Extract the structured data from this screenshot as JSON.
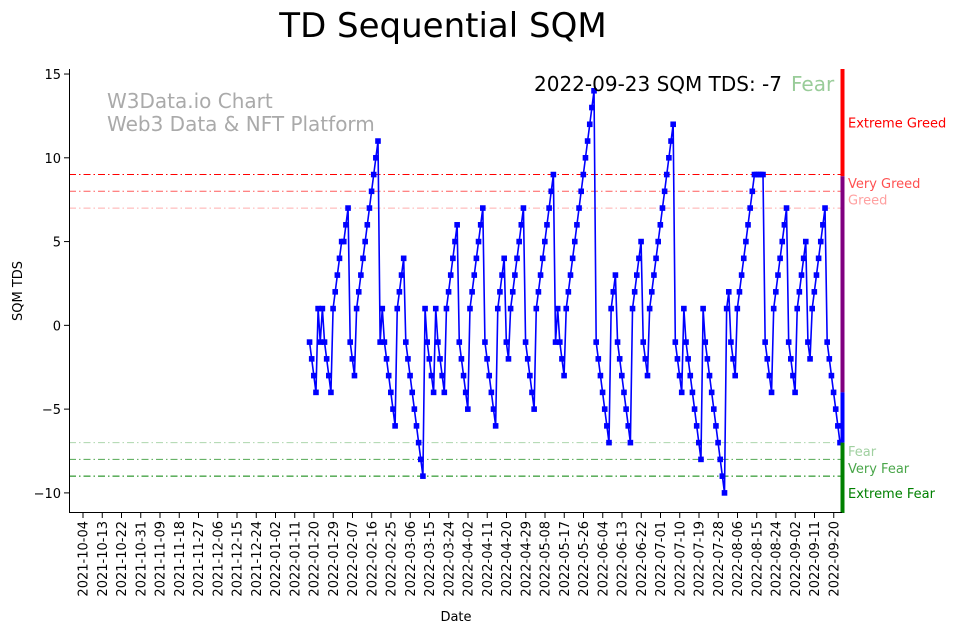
{
  "chart_data": {
    "type": "line",
    "title": "TD Sequential SQM",
    "xlabel": "Date",
    "ylabel": "SQM TDS",
    "ylim": [
      -11.2,
      15.3
    ],
    "yticks": [
      -10,
      -5,
      0,
      5,
      10,
      15
    ],
    "ytick_labels": [
      "−10",
      "−5",
      "0",
      "5",
      "10",
      "15"
    ],
    "x_tick_labels": [
      "2021-10-04",
      "2021-10-13",
      "2021-10-22",
      "2021-10-31",
      "2021-11-09",
      "2021-11-18",
      "2021-11-27",
      "2021-12-06",
      "2021-12-15",
      "2021-12-24",
      "2022-01-02",
      "2022-01-11",
      "2022-01-20",
      "2022-01-29",
      "2022-02-07",
      "2022-02-16",
      "2022-02-25",
      "2022-03-06",
      "2022-03-15",
      "2022-03-24",
      "2022-04-02",
      "2022-04-11",
      "2022-04-20",
      "2022-04-29",
      "2022-05-08",
      "2022-05-17",
      "2022-05-26",
      "2022-06-04",
      "2022-06-13",
      "2022-06-22",
      "2022-07-01",
      "2022-07-10",
      "2022-07-19",
      "2022-07-28",
      "2022-08-06",
      "2022-08-15",
      "2022-08-24",
      "2022-09-02",
      "2022-09-11",
      "2022-09-20"
    ],
    "x_start": "2021-09-30",
    "series": [
      {
        "name": "SQM TDS",
        "color": "#0000ff",
        "values": [
          -1,
          -2,
          -3,
          -4,
          1,
          -1,
          1,
          -1,
          -2,
          -3,
          -4,
          1,
          2,
          3,
          4,
          5,
          5,
          6,
          7,
          -1,
          -2,
          -3,
          1,
          2,
          3,
          4,
          5,
          6,
          7,
          8,
          9,
          10,
          11,
          -1,
          1,
          -1,
          -2,
          -3,
          -4,
          -5,
          -6,
          1,
          2,
          3,
          4,
          -1,
          -2,
          -3,
          -4,
          -5,
          -6,
          -7,
          -8,
          -9,
          1,
          -1,
          -2,
          -3,
          -4,
          1,
          -1,
          -2,
          -3,
          -4,
          1,
          2,
          3,
          4,
          5,
          6,
          -1,
          -2,
          -3,
          -4,
          -5,
          1,
          2,
          3,
          4,
          5,
          6,
          7,
          -1,
          -2,
          -3,
          -4,
          -5,
          -6,
          1,
          2,
          3,
          4,
          -1,
          -2,
          1,
          2,
          3,
          4,
          5,
          6,
          7,
          -1,
          -2,
          -3,
          -4,
          -5,
          1,
          2,
          3,
          4,
          5,
          6,
          7,
          8,
          9,
          -1,
          1,
          -1,
          -2,
          -3,
          1,
          2,
          3,
          4,
          5,
          6,
          7,
          8,
          9,
          10,
          11,
          12,
          13,
          14,
          -1,
          -2,
          -3,
          -4,
          -5,
          -6,
          -7,
          1,
          2,
          3,
          -1,
          -2,
          -3,
          -4,
          -5,
          -6,
          -7,
          1,
          2,
          3,
          4,
          5,
          -1,
          -2,
          -3,
          1,
          2,
          3,
          4,
          5,
          6,
          7,
          8,
          9,
          10,
          11,
          12,
          -1,
          -2,
          -3,
          -4,
          1,
          -1,
          -2,
          -3,
          -4,
          -5,
          -6,
          -7,
          -8,
          1,
          -1,
          -2,
          -3,
          -4,
          -5,
          -6,
          -7,
          -8,
          -9,
          -10,
          1,
          2,
          -1,
          -2,
          -3,
          1,
          2,
          3,
          4,
          5,
          6,
          7,
          8,
          9,
          9,
          9,
          9,
          9,
          -1,
          -2,
          -3,
          -4,
          1,
          2,
          3,
          4,
          5,
          6,
          7,
          -1,
          -2,
          -3,
          -4,
          1,
          2,
          3,
          4,
          5,
          -1,
          -2,
          1,
          2,
          3,
          4,
          5,
          6,
          7,
          -1,
          -2,
          -3,
          -4,
          -5,
          -6,
          -7
        ]
      }
    ],
    "threshold_lines": [
      {
        "value": 9,
        "label": "Extreme Greed",
        "color": "#ff0000"
      },
      {
        "value": 8,
        "label": "Very Greed",
        "color": "#ff5c5c"
      },
      {
        "value": 7,
        "label": "Greed",
        "color": "#ffadad"
      },
      {
        "value": -7,
        "label": "Fear",
        "color": "#add6ad"
      },
      {
        "value": -8,
        "label": "Very Fear",
        "color": "#52a852"
      },
      {
        "value": -9,
        "label": "Extreme Fear",
        "color": "#008000"
      }
    ],
    "side_labels": [
      {
        "label": "Extreme Greed",
        "y": 12.1,
        "color": "#ff0000"
      },
      {
        "label": "Very Greed",
        "y": 8.5,
        "color": "#ff5050"
      },
      {
        "label": "Greed",
        "y": 7.5,
        "color": "#ffa0a0"
      },
      {
        "label": "Fear",
        "y": -7.5,
        "color": "#a0d0a0"
      },
      {
        "label": "Very Fear",
        "y": -8.5,
        "color": "#4aa64a"
      },
      {
        "label": "Extreme Fear",
        "y": -10.0,
        "color": "#008000"
      }
    ],
    "side_bar_segments": [
      {
        "from": 8.9,
        "to": 15.3,
        "color": "#ff0000"
      },
      {
        "from": -4.0,
        "to": 8.9,
        "color": "#800080"
      },
      {
        "from": -7.0,
        "to": -4.0,
        "color": "#0000ff"
      },
      {
        "from": -11.2,
        "to": -7.0,
        "color": "#008000"
      }
    ],
    "status": {
      "text": "2022-09-23 SQM TDS: -7",
      "label": "Fear",
      "label_color": "#99cc99"
    },
    "watermark": {
      "line1": "W3Data.io Chart",
      "line2": "Web3 Data & NFT Platform",
      "color": "#aaaaaa"
    }
  }
}
